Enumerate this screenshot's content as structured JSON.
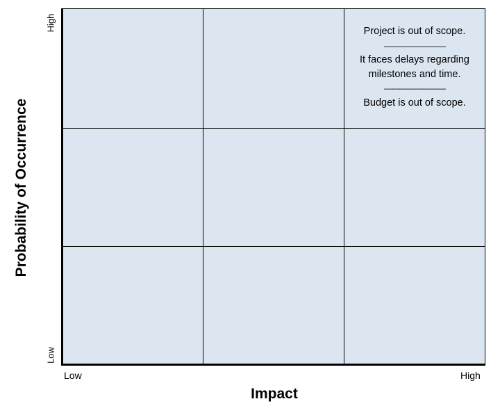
{
  "chart": {
    "y_axis_title": "Probability of Occurrence",
    "x_axis_title": "Impact",
    "y_tick_high": "High",
    "y_tick_low": "Low",
    "x_tick_low": "Low",
    "x_tick_high": "High",
    "cell_background": "#dce6f1",
    "grid_rows": 3,
    "grid_cols": 3
  },
  "cells": {
    "high_high": {
      "line1": "Project is out of scope.",
      "sep1": "————————",
      "line2": "It faces delays regarding",
      "line3": "milestones and time.",
      "sep2": "————————",
      "line4": "Budget is out of scope."
    }
  }
}
